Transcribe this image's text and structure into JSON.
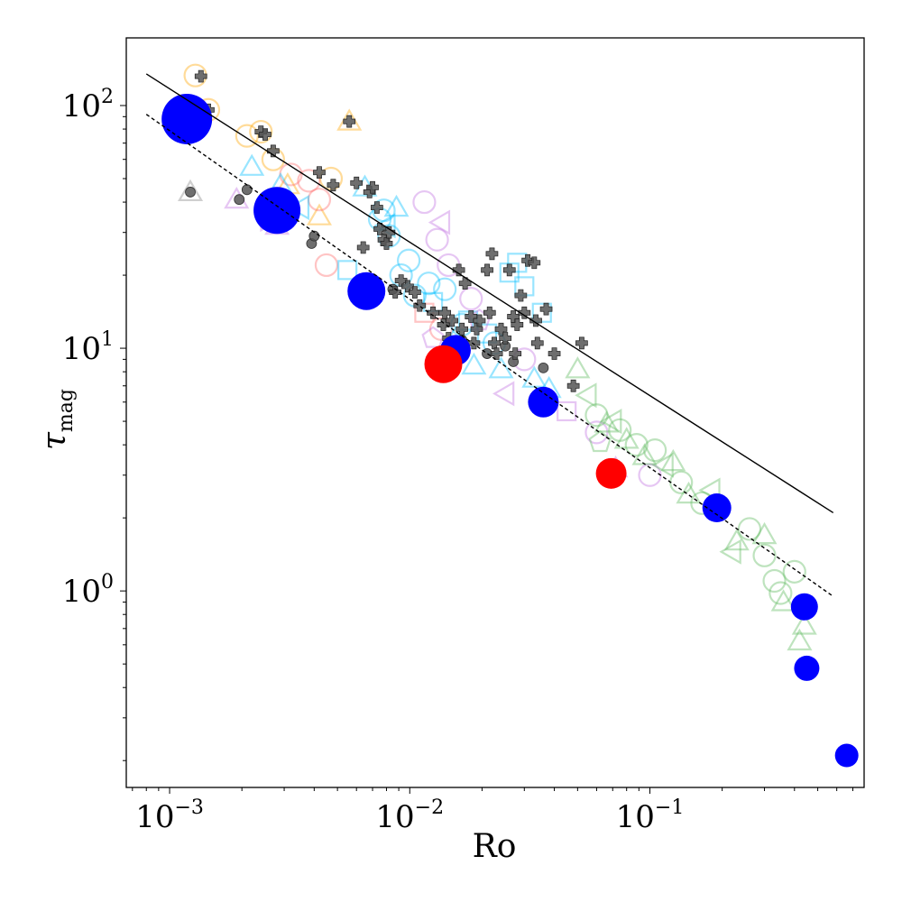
{
  "chart_data": {
    "type": "scatter",
    "title": "",
    "xlabel": "Ro",
    "ylabel": "τ",
    "ylabel_subscript": "mag",
    "xscale": "log",
    "yscale": "log",
    "xlim": [
      0.00066,
      0.78
    ],
    "ylim": [
      0.155,
      190
    ],
    "grid": false,
    "x_ticks": [
      {
        "value": 0.001,
        "base": "10",
        "exp": "−3"
      },
      {
        "value": 0.01,
        "base": "10",
        "exp": "−2"
      },
      {
        "value": 0.1,
        "base": "10",
        "exp": "−1"
      }
    ],
    "y_ticks": [
      {
        "value": 1,
        "base": "10",
        "exp": "0"
      },
      {
        "value": 10,
        "base": "10",
        "exp": "1"
      },
      {
        "value": 100,
        "base": "10",
        "exp": "2"
      }
    ],
    "colors": {
      "blue": "#0000ff",
      "red": "#ff0000",
      "gray": "#555555",
      "line": "#000000"
    },
    "lines": [
      {
        "style": "solid",
        "x": [
          0.0008,
          0.58
        ],
        "y": [
          135,
          2.1
        ]
      },
      {
        "style": "dashed",
        "x": [
          0.0008,
          0.58
        ],
        "y": [
          92,
          0.95
        ]
      }
    ],
    "series": [
      {
        "marker": "circle",
        "color": "#0000ff",
        "points": [
          {
            "x": 0.00118,
            "y": 88,
            "s": 28
          },
          {
            "x": 0.0028,
            "y": 37,
            "s": 26
          },
          {
            "x": 0.0066,
            "y": 17.2,
            "s": 21
          },
          {
            "x": 0.0155,
            "y": 9.8,
            "s": 17
          },
          {
            "x": 0.036,
            "y": 6.0,
            "s": 17
          },
          {
            "x": 0.19,
            "y": 2.2,
            "s": 16
          },
          {
            "x": 0.44,
            "y": 0.86,
            "s": 15
          },
          {
            "x": 0.45,
            "y": 0.48,
            "s": 14
          },
          {
            "x": 0.66,
            "y": 0.21,
            "s": 13
          }
        ]
      },
      {
        "marker": "circle",
        "color": "#ff0000",
        "points": [
          {
            "x": 0.0138,
            "y": 8.6,
            "s": 21
          },
          {
            "x": 0.069,
            "y": 3.05,
            "s": 17
          }
        ]
      },
      {
        "marker": "plus",
        "color": "#555555",
        "points": [
          {
            "x": 0.00135,
            "y": 132
          },
          {
            "x": 0.00145,
            "y": 96
          },
          {
            "x": 0.0024,
            "y": 78
          },
          {
            "x": 0.0025,
            "y": 76
          },
          {
            "x": 0.0027,
            "y": 65
          },
          {
            "x": 0.0042,
            "y": 53
          },
          {
            "x": 0.0048,
            "y": 47
          },
          {
            "x": 0.0056,
            "y": 86
          },
          {
            "x": 0.006,
            "y": 48
          },
          {
            "x": 0.0068,
            "y": 44
          },
          {
            "x": 0.007,
            "y": 46
          },
          {
            "x": 0.0073,
            "y": 38
          },
          {
            "x": 0.0075,
            "y": 31
          },
          {
            "x": 0.0078,
            "y": 28
          },
          {
            "x": 0.008,
            "y": 27
          },
          {
            "x": 0.0082,
            "y": 30
          },
          {
            "x": 0.0064,
            "y": 26
          },
          {
            "x": 0.0087,
            "y": 17
          },
          {
            "x": 0.0092,
            "y": 19
          },
          {
            "x": 0.0098,
            "y": 18
          },
          {
            "x": 0.0105,
            "y": 17
          },
          {
            "x": 0.011,
            "y": 15
          },
          {
            "x": 0.0125,
            "y": 14
          },
          {
            "x": 0.0138,
            "y": 12.5
          },
          {
            "x": 0.014,
            "y": 14
          },
          {
            "x": 0.0145,
            "y": 11
          },
          {
            "x": 0.015,
            "y": 13
          },
          {
            "x": 0.016,
            "y": 21
          },
          {
            "x": 0.0165,
            "y": 12
          },
          {
            "x": 0.017,
            "y": 18.5
          },
          {
            "x": 0.018,
            "y": 13.5
          },
          {
            "x": 0.0185,
            "y": 10.5
          },
          {
            "x": 0.019,
            "y": 12
          },
          {
            "x": 0.0195,
            "y": 13
          },
          {
            "x": 0.021,
            "y": 21
          },
          {
            "x": 0.0215,
            "y": 14
          },
          {
            "x": 0.022,
            "y": 24.5
          },
          {
            "x": 0.0225,
            "y": 10.5
          },
          {
            "x": 0.023,
            "y": 9.5
          },
          {
            "x": 0.024,
            "y": 12
          },
          {
            "x": 0.025,
            "y": 11
          },
          {
            "x": 0.026,
            "y": 21
          },
          {
            "x": 0.027,
            "y": 13.5
          },
          {
            "x": 0.0275,
            "y": 9.5
          },
          {
            "x": 0.028,
            "y": 12.5
          },
          {
            "x": 0.029,
            "y": 16.5
          },
          {
            "x": 0.03,
            "y": 14
          },
          {
            "x": 0.031,
            "y": 23
          },
          {
            "x": 0.033,
            "y": 22.5
          },
          {
            "x": 0.034,
            "y": 10.5
          },
          {
            "x": 0.037,
            "y": 14.5
          },
          {
            "x": 0.04,
            "y": 9.5
          },
          {
            "x": 0.048,
            "y": 7.0
          },
          {
            "x": 0.052,
            "y": 10.5
          },
          {
            "x": 0.0335,
            "y": 13
          }
        ]
      },
      {
        "marker": "dot",
        "color": "#555555",
        "points": [
          {
            "x": 0.00122,
            "y": 44
          },
          {
            "x": 0.00195,
            "y": 41
          },
          {
            "x": 0.0021,
            "y": 45
          },
          {
            "x": 0.0039,
            "y": 27
          },
          {
            "x": 0.004,
            "y": 29
          },
          {
            "x": 0.0085,
            "y": 17.5
          },
          {
            "x": 0.021,
            "y": 9.5
          },
          {
            "x": 0.027,
            "y": 8.8
          },
          {
            "x": 0.036,
            "y": 8.3
          },
          {
            "x": 0.0165,
            "y": 10.8
          },
          {
            "x": 0.025,
            "y": 10.2
          }
        ]
      },
      {
        "marker": "faded",
        "color": "#ffa500",
        "points": [
          {
            "x": 0.00128,
            "y": 133,
            "m": "o"
          },
          {
            "x": 0.00145,
            "y": 96,
            "m": "o"
          },
          {
            "x": 0.0021,
            "y": 75,
            "m": "o"
          },
          {
            "x": 0.0024,
            "y": 78,
            "m": "o"
          },
          {
            "x": 0.0027,
            "y": 60,
            "m": "o"
          },
          {
            "x": 0.0031,
            "y": 47,
            "m": "^"
          },
          {
            "x": 0.0056,
            "y": 86,
            "m": "^"
          },
          {
            "x": 0.0042,
            "y": 35,
            "m": "^"
          },
          {
            "x": 0.0047,
            "y": 50,
            "m": "o"
          }
        ]
      },
      {
        "marker": "faded",
        "color": "#ff6b6b",
        "points": [
          {
            "x": 0.0032,
            "y": 52,
            "m": "o"
          },
          {
            "x": 0.0038,
            "y": 49,
            "m": "o"
          },
          {
            "x": 0.0042,
            "y": 41,
            "m": "o"
          },
          {
            "x": 0.0045,
            "y": 22,
            "m": "o"
          },
          {
            "x": 0.0115,
            "y": 14,
            "m": "s"
          },
          {
            "x": 0.0135,
            "y": 12,
            "m": "o"
          }
        ]
      },
      {
        "marker": "faded",
        "color": "#00bfff",
        "points": [
          {
            "x": 0.00125,
            "y": 88,
            "m": "^"
          },
          {
            "x": 0.0022,
            "y": 56,
            "m": "^"
          },
          {
            "x": 0.0029,
            "y": 47,
            "m": "^"
          },
          {
            "x": 0.0035,
            "y": 38,
            "m": "<"
          },
          {
            "x": 0.0055,
            "y": 21,
            "m": "s"
          },
          {
            "x": 0.0065,
            "y": 46,
            "m": "^"
          },
          {
            "x": 0.0075,
            "y": 34,
            "m": "o"
          },
          {
            "x": 0.0078,
            "y": 37,
            "m": "o"
          },
          {
            "x": 0.008,
            "y": 32,
            "m": "<"
          },
          {
            "x": 0.0082,
            "y": 29,
            "m": "o"
          },
          {
            "x": 0.0088,
            "y": 38,
            "m": "^"
          },
          {
            "x": 0.0092,
            "y": 20,
            "m": "o"
          },
          {
            "x": 0.0099,
            "y": 23,
            "m": "o"
          },
          {
            "x": 0.0105,
            "y": 16.5,
            "m": "o"
          },
          {
            "x": 0.012,
            "y": 18.5,
            "m": "o"
          },
          {
            "x": 0.0125,
            "y": 15.5,
            "m": "s"
          },
          {
            "x": 0.014,
            "y": 17.5,
            "m": "o"
          },
          {
            "x": 0.0155,
            "y": 11,
            "m": "^"
          },
          {
            "x": 0.0165,
            "y": 12.5,
            "m": "o"
          },
          {
            "x": 0.0175,
            "y": 13,
            "m": "s"
          },
          {
            "x": 0.0185,
            "y": 8.5,
            "m": "^"
          },
          {
            "x": 0.021,
            "y": 11.5,
            "m": "s"
          },
          {
            "x": 0.0225,
            "y": 10.5,
            "m": "o"
          },
          {
            "x": 0.024,
            "y": 8.2,
            "m": "^"
          },
          {
            "x": 0.026,
            "y": 20.5,
            "m": "s"
          },
          {
            "x": 0.028,
            "y": 22.5,
            "m": "s"
          },
          {
            "x": 0.03,
            "y": 18,
            "m": "s"
          },
          {
            "x": 0.033,
            "y": 7.5,
            "m": "^"
          },
          {
            "x": 0.0355,
            "y": 14,
            "m": "s"
          },
          {
            "x": 0.038,
            "y": 6.8,
            "m": "^"
          }
        ]
      },
      {
        "marker": "faded",
        "color": "#c070e0",
        "points": [
          {
            "x": 0.0019,
            "y": 41,
            "m": "^"
          },
          {
            "x": 0.0026,
            "y": 34,
            "m": ">"
          },
          {
            "x": 0.0028,
            "y": 32,
            "m": "^"
          },
          {
            "x": 0.0115,
            "y": 40,
            "m": "o"
          },
          {
            "x": 0.0135,
            "y": 33,
            "m": "<"
          },
          {
            "x": 0.013,
            "y": 28,
            "m": "o"
          },
          {
            "x": 0.0145,
            "y": 22,
            "m": "o"
          },
          {
            "x": 0.0125,
            "y": 11,
            "m": "p"
          },
          {
            "x": 0.018,
            "y": 16,
            "m": "o"
          },
          {
            "x": 0.0195,
            "y": 13,
            "m": "p"
          },
          {
            "x": 0.025,
            "y": 6.5,
            "m": "<"
          },
          {
            "x": 0.03,
            "y": 9,
            "m": "o"
          },
          {
            "x": 0.045,
            "y": 5.5,
            "m": "s"
          },
          {
            "x": 0.06,
            "y": 4.5,
            "m": "o"
          },
          {
            "x": 0.072,
            "y": 3.2,
            "m": "^"
          },
          {
            "x": 0.1,
            "y": 3.0,
            "m": "o"
          }
        ]
      },
      {
        "marker": "faded",
        "color": "#5cb85c",
        "points": [
          {
            "x": 0.05,
            "y": 8.2,
            "m": "^"
          },
          {
            "x": 0.055,
            "y": 6.4,
            "m": "<"
          },
          {
            "x": 0.06,
            "y": 5.3,
            "m": "o"
          },
          {
            "x": 0.062,
            "y": 4.1,
            "m": "p"
          },
          {
            "x": 0.066,
            "y": 4.9,
            "m": "^"
          },
          {
            "x": 0.07,
            "y": 5.0,
            "m": "<"
          },
          {
            "x": 0.075,
            "y": 4.6,
            "m": "o"
          },
          {
            "x": 0.08,
            "y": 4.2,
            "m": "^"
          },
          {
            "x": 0.088,
            "y": 4.0,
            "m": "o"
          },
          {
            "x": 0.095,
            "y": 3.6,
            "m": "^"
          },
          {
            "x": 0.105,
            "y": 3.8,
            "m": "o"
          },
          {
            "x": 0.115,
            "y": 3.3,
            "m": "<"
          },
          {
            "x": 0.125,
            "y": 3.4,
            "m": "^"
          },
          {
            "x": 0.135,
            "y": 2.8,
            "m": "o"
          },
          {
            "x": 0.145,
            "y": 2.5,
            "m": "^"
          },
          {
            "x": 0.165,
            "y": 2.3,
            "m": "o"
          },
          {
            "x": 0.18,
            "y": 2.6,
            "m": "<"
          },
          {
            "x": 0.22,
            "y": 1.45,
            "m": "<"
          },
          {
            "x": 0.23,
            "y": 1.6,
            "m": "^"
          },
          {
            "x": 0.26,
            "y": 1.8,
            "m": "o"
          },
          {
            "x": 0.3,
            "y": 1.4,
            "m": "o"
          },
          {
            "x": 0.33,
            "y": 1.1,
            "m": "o"
          },
          {
            "x": 0.35,
            "y": 0.98,
            "m": "o"
          },
          {
            "x": 0.36,
            "y": 0.9,
            "m": "^"
          },
          {
            "x": 0.42,
            "y": 0.62,
            "m": "^"
          },
          {
            "x": 0.44,
            "y": 0.72,
            "m": "^"
          },
          {
            "x": 0.4,
            "y": 1.2,
            "m": "o"
          },
          {
            "x": 0.3,
            "y": 1.7,
            "m": "^"
          }
        ]
      },
      {
        "marker": "faded",
        "color": "#888888",
        "points": [
          {
            "x": 0.00122,
            "y": 44,
            "m": "^"
          }
        ]
      }
    ]
  }
}
